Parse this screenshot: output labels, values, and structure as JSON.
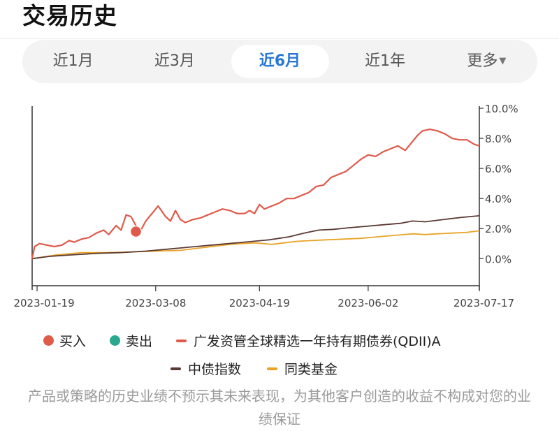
{
  "page": {
    "title": "交易历史"
  },
  "tabs": [
    {
      "label": "近1月",
      "active": false
    },
    {
      "label": "近3月",
      "active": false
    },
    {
      "label": "近6月",
      "active": true
    },
    {
      "label": "近1年",
      "active": false
    },
    {
      "label": "更多",
      "active": false,
      "icon": "caret-down-icon"
    }
  ],
  "legend": {
    "buy": "买入",
    "sell": "卖出",
    "fund": "广发资管全球精选一年持有期债券(QDII)A",
    "index": "中债指数",
    "peer": "同类基金"
  },
  "colors": {
    "fund": "#e05a4a",
    "index": "#5a3a33",
    "peer": "#e9a325",
    "buy": "#e05a4a",
    "sell": "#2aa88f",
    "accent": "#2a78d6"
  },
  "disclaimer": "产品或策略的历史业绩不预示其未来表现，为其他客户创造的收益不构成对您的业绩保证",
  "chart_data": {
    "type": "line",
    "x_range": [
      "2023-01-17",
      "2023-07-17"
    ],
    "x_ticks": [
      "2023-01-19",
      "2023-03-08",
      "2023-04-19",
      "2023-06-02",
      "2023-07-17"
    ],
    "y_ticks": [
      "0.0%",
      "2.0%",
      "4.0%",
      "6.0%",
      "8.0%",
      "10.0%"
    ],
    "ylim": [
      -1.8,
      10.0
    ],
    "y_unit": "%",
    "series": [
      {
        "name": "广发资管全球精选一年持有期债券(QDII)A",
        "key": "fund",
        "x": [
          "2023-01-17",
          "2023-01-18",
          "2023-01-20",
          "2023-01-23",
          "2023-01-26",
          "2023-01-29",
          "2023-02-01",
          "2023-02-03",
          "2023-02-06",
          "2023-02-09",
          "2023-02-12",
          "2023-02-15",
          "2023-02-17",
          "2023-02-20",
          "2023-02-22",
          "2023-02-24",
          "2023-02-26",
          "2023-02-28",
          "2023-03-02",
          "2023-03-04",
          "2023-03-06",
          "2023-03-09",
          "2023-03-12",
          "2023-03-14",
          "2023-03-16",
          "2023-03-18",
          "2023-03-20",
          "2023-03-23",
          "2023-03-26",
          "2023-03-29",
          "2023-04-01",
          "2023-04-04",
          "2023-04-07",
          "2023-04-10",
          "2023-04-13",
          "2023-04-15",
          "2023-04-17",
          "2023-04-19",
          "2023-04-21",
          "2023-04-24",
          "2023-04-27",
          "2023-04-30",
          "2023-05-03",
          "2023-05-06",
          "2023-05-09",
          "2023-05-12",
          "2023-05-15",
          "2023-05-18",
          "2023-05-21",
          "2023-05-24",
          "2023-05-27",
          "2023-05-30",
          "2023-06-02",
          "2023-06-05",
          "2023-06-08",
          "2023-06-11",
          "2023-06-14",
          "2023-06-17",
          "2023-06-20",
          "2023-06-22",
          "2023-06-24",
          "2023-06-27",
          "2023-06-30",
          "2023-07-03",
          "2023-07-06",
          "2023-07-09",
          "2023-07-12",
          "2023-07-15",
          "2023-07-17"
        ],
        "values": [
          0.0,
          0.8,
          1.0,
          0.9,
          0.8,
          0.9,
          1.2,
          1.1,
          1.3,
          1.4,
          1.7,
          1.9,
          1.6,
          2.2,
          1.9,
          2.9,
          2.8,
          2.2,
          1.9,
          2.5,
          2.9,
          3.5,
          2.8,
          2.5,
          3.2,
          2.6,
          2.4,
          2.6,
          2.7,
          2.9,
          3.1,
          3.3,
          3.2,
          3.0,
          3.0,
          3.2,
          3.0,
          3.6,
          3.3,
          3.5,
          3.7,
          4.0,
          4.0,
          4.2,
          4.4,
          4.8,
          4.9,
          5.4,
          5.6,
          5.8,
          6.2,
          6.6,
          6.9,
          6.8,
          7.1,
          7.3,
          7.5,
          7.2,
          7.8,
          8.2,
          8.5,
          8.6,
          8.5,
          8.3,
          8.0,
          7.9,
          7.9,
          7.6,
          7.5
        ]
      },
      {
        "name": "中债指数",
        "key": "index",
        "x": [
          "2023-01-17",
          "2023-01-24",
          "2023-02-02",
          "2023-02-12",
          "2023-02-22",
          "2023-03-04",
          "2023-03-14",
          "2023-03-24",
          "2023-04-03",
          "2023-04-13",
          "2023-04-23",
          "2023-05-01",
          "2023-05-07",
          "2023-05-13",
          "2023-05-19",
          "2023-05-25",
          "2023-06-01",
          "2023-06-08",
          "2023-06-15",
          "2023-06-20",
          "2023-06-25",
          "2023-06-30",
          "2023-07-05",
          "2023-07-10",
          "2023-07-17"
        ],
        "values": [
          0.0,
          0.15,
          0.25,
          0.35,
          0.4,
          0.5,
          0.65,
          0.8,
          0.95,
          1.1,
          1.25,
          1.45,
          1.7,
          1.9,
          1.95,
          2.05,
          2.15,
          2.25,
          2.35,
          2.5,
          2.45,
          2.55,
          2.65,
          2.75,
          2.85
        ]
      },
      {
        "name": "同类基金",
        "key": "peer",
        "x": [
          "2023-01-17",
          "2023-01-27",
          "2023-02-06",
          "2023-02-16",
          "2023-02-26",
          "2023-03-08",
          "2023-03-18",
          "2023-03-28",
          "2023-04-07",
          "2023-04-17",
          "2023-04-24",
          "2023-04-29",
          "2023-05-04",
          "2023-05-10",
          "2023-05-16",
          "2023-05-23",
          "2023-05-30",
          "2023-06-06",
          "2023-06-13",
          "2023-06-20",
          "2023-06-25",
          "2023-06-30",
          "2023-07-06",
          "2023-07-12",
          "2023-07-17"
        ],
        "values": [
          0.0,
          0.25,
          0.4,
          0.4,
          0.45,
          0.5,
          0.55,
          0.75,
          0.95,
          1.05,
          0.95,
          1.05,
          1.15,
          1.2,
          1.25,
          1.3,
          1.35,
          1.45,
          1.55,
          1.65,
          1.6,
          1.65,
          1.7,
          1.75,
          1.85
        ]
      }
    ],
    "markers": [
      {
        "type": "buy",
        "x": "2023-02-28",
        "y": 1.8
      }
    ]
  }
}
